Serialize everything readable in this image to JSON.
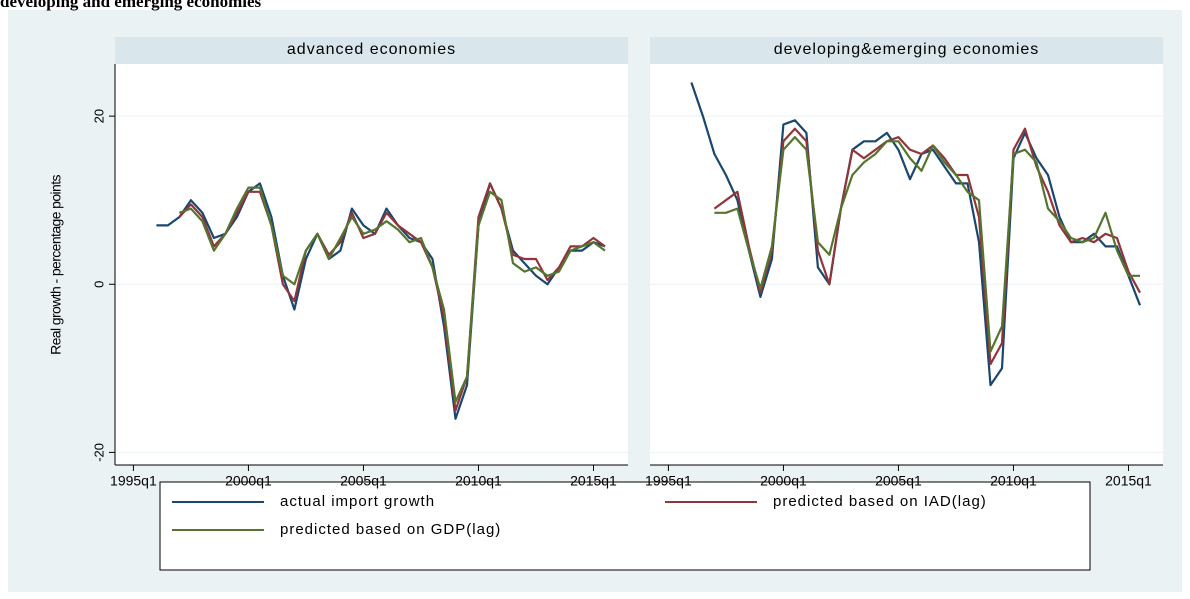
{
  "caption": "developing and emerging economies",
  "chart_data": [
    {
      "type": "line",
      "title": "advanced economies",
      "ylabel": "Real growth - percentage points",
      "x": [
        1996,
        1996.5,
        1997,
        1997.5,
        1998,
        1998.5,
        1999,
        1999.5,
        2000,
        2000.5,
        2001,
        2001.5,
        2002,
        2002.5,
        2003,
        2003.5,
        2004,
        2004.5,
        2005,
        2005.5,
        2006,
        2006.5,
        2007,
        2007.5,
        2008,
        2008.5,
        2009,
        2009.5,
        2010,
        2010.5,
        2011,
        2011.5,
        2012,
        2012.5,
        2013,
        2013.5,
        2014,
        2014.5,
        2015,
        2015.5
      ],
      "xlim": [
        1994.2,
        2016.5
      ],
      "ylim": [
        -21.5,
        26.2
      ],
      "xticks": [
        {
          "value": 1995,
          "label": "1995q1"
        },
        {
          "value": 2000,
          "label": "2000q1"
        },
        {
          "value": 2005,
          "label": "2005q1"
        },
        {
          "value": 2010,
          "label": "2010q1"
        },
        {
          "value": 2015,
          "label": "2015q1"
        }
      ],
      "yticks": [
        -20,
        0,
        20
      ],
      "grid": true,
      "series": [
        {
          "name": "actual import growth",
          "color": "#1a476f",
          "values": [
            7,
            7,
            8,
            10,
            8.5,
            5.5,
            6,
            8,
            11,
            12,
            8,
            1,
            -3,
            3,
            6,
            3,
            4,
            9,
            7,
            6,
            9,
            7,
            5.5,
            5,
            3,
            -5,
            -16,
            -12,
            7,
            12,
            9,
            4,
            2.5,
            1,
            0,
            2,
            4,
            4,
            5,
            4.5
          ]
        },
        {
          "name": "predicted based on IAD(lag)",
          "color": "#90353b",
          "values": [
            null,
            null,
            8,
            9.5,
            8,
            4.5,
            6,
            8.5,
            11,
            11,
            7,
            0,
            -2,
            4,
            6,
            3.5,
            5,
            8.5,
            5.5,
            6,
            8.5,
            7,
            6,
            5,
            2,
            -4,
            -15,
            -11,
            8,
            12,
            9,
            3.5,
            3,
            3,
            0.5,
            2,
            4.5,
            4.5,
            5.5,
            4.5
          ]
        },
        {
          "name": "predicted based on GDP(lag)",
          "color": "#55752f",
          "values": [
            null,
            null,
            8.5,
            9,
            7.5,
            4,
            6,
            9,
            11.5,
            11.5,
            7,
            1,
            0,
            4,
            6,
            3,
            5.5,
            8,
            6,
            6.5,
            7.5,
            6.5,
            5,
            5.5,
            2,
            -3,
            -14,
            -11,
            7,
            11,
            10,
            2.5,
            1.5,
            2,
            1,
            1.5,
            4,
            4.5,
            5,
            4
          ]
        }
      ]
    },
    {
      "type": "line",
      "title": "developing&emerging economies",
      "x": [
        1996,
        1996.5,
        1997,
        1997.5,
        1998,
        1998.5,
        1999,
        1999.5,
        2000,
        2000.5,
        2001,
        2001.5,
        2002,
        2002.5,
        2003,
        2003.5,
        2004,
        2004.5,
        2005,
        2005.5,
        2006,
        2006.5,
        2007,
        2007.5,
        2008,
        2008.5,
        2009,
        2009.5,
        2010,
        2010.5,
        2011,
        2011.5,
        2012,
        2012.5,
        2013,
        2013.5,
        2014,
        2014.5,
        2015,
        2015.5
      ],
      "xlim": [
        1994.2,
        2016.5
      ],
      "ylim": [
        -21.5,
        26.2
      ],
      "xticks": [
        {
          "value": 1995,
          "label": "1995q1"
        },
        {
          "value": 2000,
          "label": "2000q1"
        },
        {
          "value": 2005,
          "label": "2005q1"
        },
        {
          "value": 2010,
          "label": "2010q1"
        },
        {
          "value": 2015,
          "label": "2015q1"
        }
      ],
      "yticks": [
        -20,
        0,
        20
      ],
      "grid": true,
      "series": [
        {
          "name": "actual import growth",
          "color": "#1a476f",
          "values": [
            24,
            20,
            15.5,
            13,
            10,
            4,
            -1.5,
            3,
            19,
            19.5,
            18,
            2,
            0,
            9,
            16,
            17,
            17,
            18,
            16,
            12.5,
            15.5,
            16,
            14,
            12,
            12,
            5,
            -12,
            -10,
            15,
            18,
            15,
            13,
            8,
            5,
            5,
            6,
            4.5,
            4.5,
            1,
            -2.5
          ]
        },
        {
          "name": "predicted based on IAD(lag)",
          "color": "#90353b",
          "values": [
            null,
            null,
            9,
            10,
            11,
            4.5,
            -1,
            4,
            17,
            18.5,
            17,
            4,
            0,
            9,
            16,
            15,
            16,
            17,
            17.5,
            16,
            15.5,
            16.5,
            15,
            13,
            13,
            8,
            -9.5,
            -7,
            16,
            18.5,
            14,
            11,
            7,
            5,
            5.5,
            5,
            6,
            5.5,
            1.5,
            -1
          ]
        },
        {
          "name": "predicted based on GDP(lag)",
          "color": "#55752f",
          "values": [
            null,
            null,
            8.5,
            8.5,
            9,
            4,
            -0.5,
            4.5,
            16,
            17.5,
            16,
            5,
            3.5,
            9,
            13,
            14.5,
            15.5,
            17,
            17,
            15,
            13.5,
            16.5,
            14.5,
            13,
            11,
            10,
            -8,
            -5,
            15.5,
            16,
            14.5,
            9,
            7.5,
            5.5,
            5,
            5.5,
            8.5,
            4,
            1,
            1
          ]
        }
      ]
    }
  ]
}
